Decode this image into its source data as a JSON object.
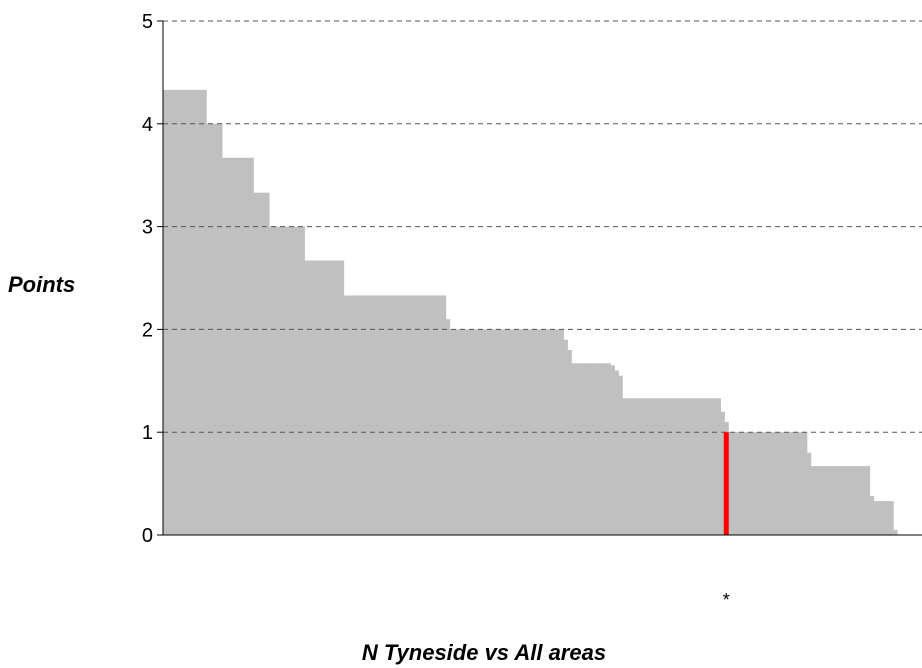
{
  "chart_data": {
    "type": "bar",
    "ylabel": "Points",
    "xlabel": "N Tyneside vs All areas",
    "ylim": [
      0,
      5
    ],
    "yticks": [
      0,
      1,
      2,
      3,
      4,
      5
    ],
    "grid": true,
    "series": [
      {
        "values": [
          4.33,
          4.33,
          4.33,
          4.33,
          4.33,
          4.33,
          4.33,
          4.33,
          4.33,
          4.33,
          4.33,
          4.0,
          4.0,
          4.0,
          4.0,
          3.67,
          3.67,
          3.67,
          3.67,
          3.67,
          3.67,
          3.67,
          3.67,
          3.33,
          3.33,
          3.33,
          3.33,
          3.0,
          3.0,
          3.0,
          3.0,
          3.0,
          3.0,
          3.0,
          3.0,
          3.0,
          2.67,
          2.67,
          2.67,
          2.67,
          2.67,
          2.67,
          2.67,
          2.67,
          2.67,
          2.67,
          2.33,
          2.33,
          2.33,
          2.33,
          2.33,
          2.33,
          2.33,
          2.33,
          2.33,
          2.33,
          2.33,
          2.33,
          2.33,
          2.33,
          2.33,
          2.33,
          2.33,
          2.33,
          2.33,
          2.33,
          2.33,
          2.33,
          2.33,
          2.33,
          2.33,
          2.33,
          2.1,
          2.0,
          2.0,
          2.0,
          2.0,
          2.0,
          2.0,
          2.0,
          2.0,
          2.0,
          2.0,
          2.0,
          2.0,
          2.0,
          2.0,
          2.0,
          2.0,
          2.0,
          2.0,
          2.0,
          2.0,
          2.0,
          2.0,
          2.0,
          2.0,
          2.0,
          2.0,
          2.0,
          2.0,
          2.0,
          1.9,
          1.8,
          1.67,
          1.67,
          1.67,
          1.67,
          1.67,
          1.67,
          1.67,
          1.67,
          1.67,
          1.67,
          1.65,
          1.6,
          1.55,
          1.33,
          1.33,
          1.33,
          1.33,
          1.33,
          1.33,
          1.33,
          1.33,
          1.33,
          1.33,
          1.33,
          1.33,
          1.33,
          1.33,
          1.33,
          1.33,
          1.33,
          1.33,
          1.33,
          1.33,
          1.33,
          1.33,
          1.33,
          1.33,
          1.33,
          1.2,
          1.1,
          1.0,
          1.0,
          1.0,
          1.0,
          1.0,
          1.0,
          1.0,
          1.0,
          1.0,
          1.0,
          1.0,
          1.0,
          1.0,
          1.0,
          1.0,
          1.0,
          1.0,
          1.0,
          1.0,
          1.0,
          0.8,
          0.67,
          0.67,
          0.67,
          0.67,
          0.67,
          0.67,
          0.67,
          0.67,
          0.67,
          0.67,
          0.67,
          0.67,
          0.67,
          0.67,
          0.67,
          0.38,
          0.33,
          0.33,
          0.33,
          0.33,
          0.33,
          0.05
        ]
      }
    ],
    "highlight": {
      "index": 143,
      "value": 1.0,
      "color": "#ff0000",
      "marker": "*"
    }
  },
  "colors": {
    "bars": "#c0c0c0",
    "highlight": "#ff0000",
    "grid": "#555555",
    "axis": "#000000"
  }
}
